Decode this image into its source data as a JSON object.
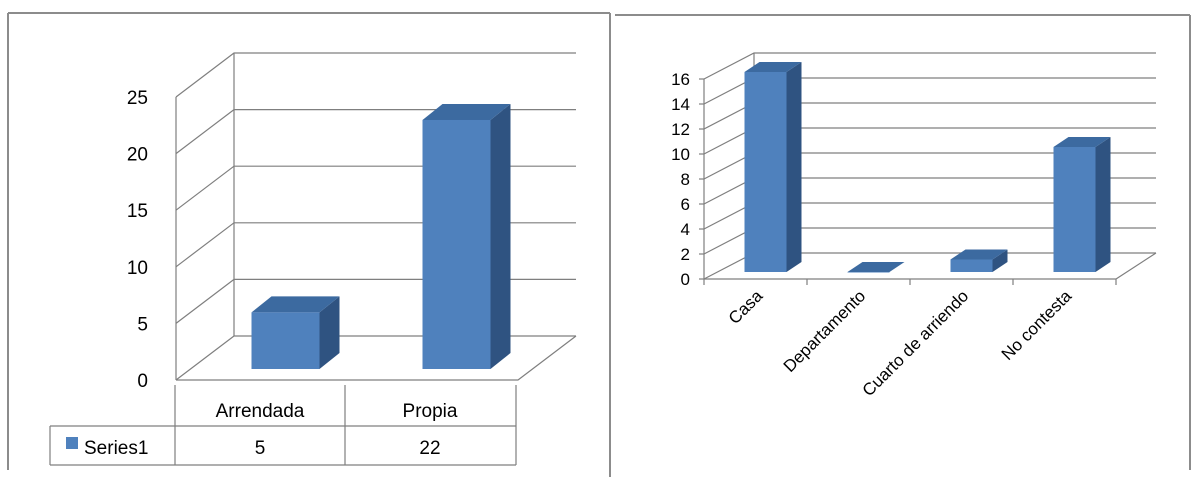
{
  "charts": [
    {
      "type": "bar",
      "categories": [
        "Arrendada",
        "Propia"
      ],
      "series": [
        {
          "name": "Series1",
          "values": [
            5,
            22
          ]
        }
      ],
      "ylim": [
        0,
        25
      ],
      "yticks": [
        0,
        5,
        10,
        15,
        20,
        25
      ],
      "grid": true,
      "data_table": true,
      "colors": {
        "bar": "#4f81bd",
        "bar_top": "#3c6aa0",
        "bar_side": "#2f5381",
        "grid": "#7f7f7f"
      }
    },
    {
      "type": "bar",
      "categories": [
        "Casa",
        "Departamento",
        "Cuarto de arriendo",
        "No contesta"
      ],
      "series": [
        {
          "values": [
            16,
            0,
            1,
            10
          ]
        }
      ],
      "ylim": [
        0,
        16
      ],
      "yticks": [
        0,
        2,
        4,
        6,
        8,
        10,
        12,
        14,
        16
      ],
      "grid": true,
      "rotated_labels": true,
      "colors": {
        "bar": "#4f81bd",
        "bar_top": "#3c6aa0",
        "bar_side": "#2f5381",
        "grid": "#7f7f7f"
      }
    }
  ]
}
